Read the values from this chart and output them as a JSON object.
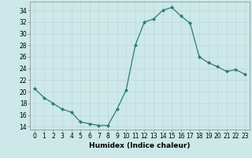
{
  "x": [
    0,
    1,
    2,
    3,
    4,
    5,
    6,
    7,
    8,
    9,
    10,
    11,
    12,
    13,
    14,
    15,
    16,
    17,
    18,
    19,
    20,
    21,
    22,
    23
  ],
  "y": [
    20.5,
    19.0,
    18.0,
    17.0,
    16.5,
    14.8,
    14.5,
    14.2,
    14.2,
    17.0,
    20.3,
    28.0,
    32.0,
    32.5,
    34.0,
    34.5,
    33.0,
    31.8,
    26.0,
    25.0,
    24.3,
    23.5,
    23.8,
    23.0
  ],
  "line_color": "#2e7d6e",
  "marker": "D",
  "marker_size": 2.0,
  "bg_color": "#cce8e8",
  "grid_color": "#b0d0d0",
  "xlabel": "Humidex (Indice chaleur)",
  "ylim": [
    13.5,
    35.5
  ],
  "xlim": [
    -0.5,
    23.5
  ],
  "yticks": [
    14,
    16,
    18,
    20,
    22,
    24,
    26,
    28,
    30,
    32,
    34
  ],
  "xticks": [
    0,
    1,
    2,
    3,
    4,
    5,
    6,
    7,
    8,
    9,
    10,
    11,
    12,
    13,
    14,
    15,
    16,
    17,
    18,
    19,
    20,
    21,
    22,
    23
  ],
  "axis_fontsize": 5.5,
  "label_fontsize": 6.5
}
